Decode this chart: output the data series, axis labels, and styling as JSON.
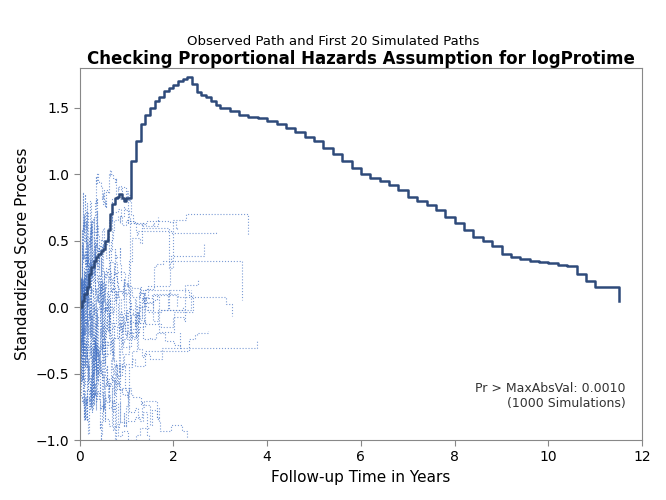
{
  "title": "Checking Proportional Hazards Assumption for logProtime",
  "subtitle": "Observed Path and First 20 Simulated Paths",
  "xlabel": "Follow-up Time in Years",
  "ylabel": "Standardized Score Process",
  "xlim": [
    0,
    12
  ],
  "ylim": [
    -1.0,
    1.8
  ],
  "yticks": [
    -1.0,
    -0.5,
    0.0,
    0.5,
    1.0,
    1.5
  ],
  "xticks": [
    0,
    2,
    4,
    6,
    8,
    10,
    12
  ],
  "annotation": "Pr > MaxAbsVal: 0.0010\n(1000 Simulations)",
  "obs_color": "#2E4A7A",
  "sim_color": "#4472C4",
  "background_color": "#FFFFFF",
  "seed": 42
}
